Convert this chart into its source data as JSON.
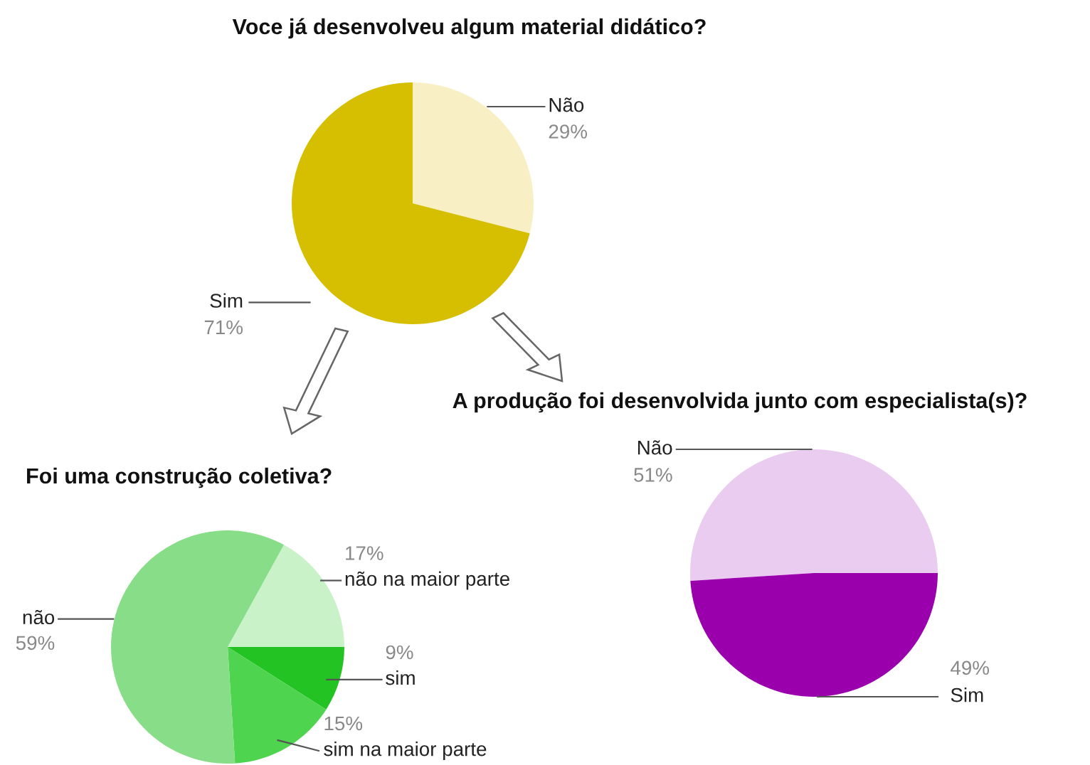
{
  "chart_data": [
    {
      "type": "pie",
      "title": "Voce já desenvolveu algum material didático?",
      "categories": [
        "Não",
        "Sim"
      ],
      "values": [
        29,
        71
      ],
      "colors": [
        "#f8f0c4",
        "#d6be00"
      ],
      "value_labels": [
        "29%",
        "71%"
      ]
    },
    {
      "type": "pie",
      "title": "A produção foi desenvolvida junto com especialista(s)?",
      "categories": [
        "Não",
        "Sim"
      ],
      "values": [
        51,
        49
      ],
      "colors": [
        "#e9ccef",
        "#9a00ac"
      ],
      "value_labels": [
        "51%",
        "49%"
      ]
    },
    {
      "type": "pie",
      "title": "Foi uma construção coletiva?",
      "categories": [
        "não na maior parte",
        "sim",
        "sim na maior parte",
        "não"
      ],
      "values": [
        17,
        9,
        15,
        59
      ],
      "colors": [
        "#c9f2c9",
        "#22c322",
        "#4fd44f",
        "#88dd88"
      ],
      "value_labels": [
        "17%",
        "9%",
        "15%",
        "59%"
      ]
    }
  ]
}
